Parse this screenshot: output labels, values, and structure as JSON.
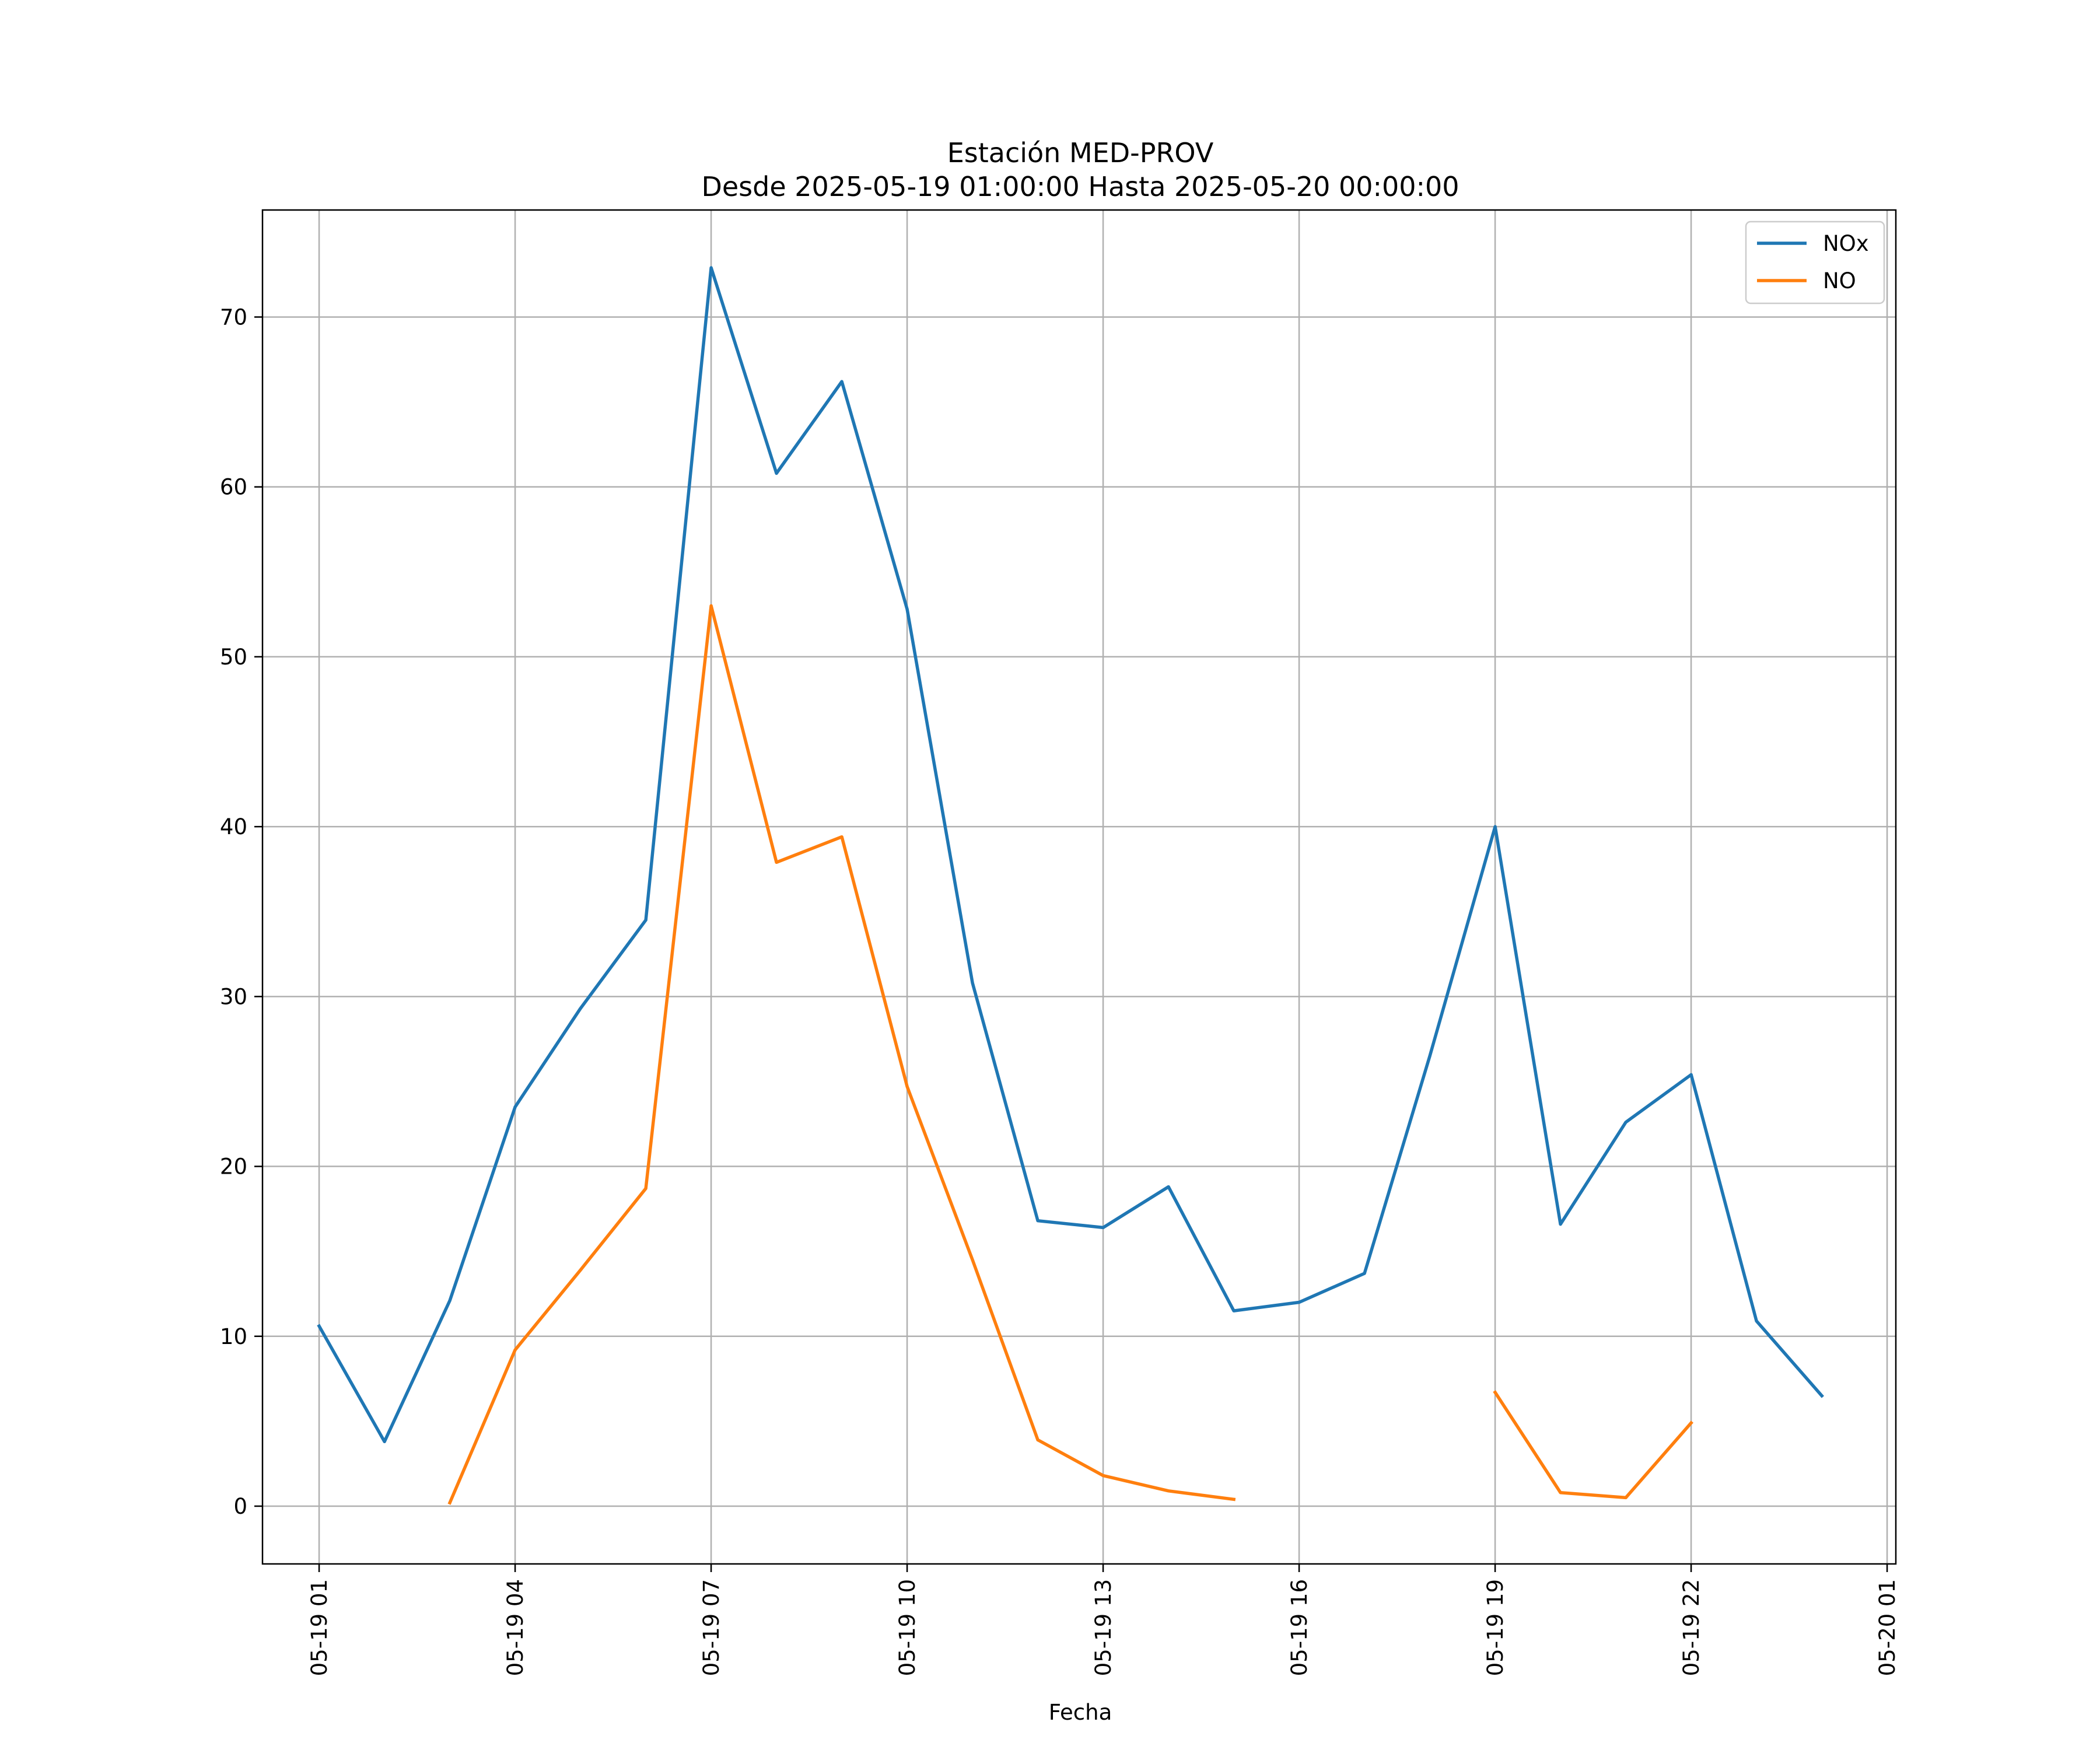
{
  "chart_data": {
    "type": "line",
    "title": "Estación MED-PROV",
    "subtitle": "Desde 2025-05-19 01:00:00 Hasta 2025-05-20 00:00:00",
    "xlabel": "Fecha",
    "ylabel": "",
    "x": [
      "2025-05-19 01:00",
      "2025-05-19 02:00",
      "2025-05-19 03:00",
      "2025-05-19 04:00",
      "2025-05-19 05:00",
      "2025-05-19 06:00",
      "2025-05-19 07:00",
      "2025-05-19 08:00",
      "2025-05-19 09:00",
      "2025-05-19 10:00",
      "2025-05-19 11:00",
      "2025-05-19 12:00",
      "2025-05-19 13:00",
      "2025-05-19 14:00",
      "2025-05-19 15:00",
      "2025-05-19 16:00",
      "2025-05-19 17:00",
      "2025-05-19 18:00",
      "2025-05-19 19:00",
      "2025-05-19 20:00",
      "2025-05-19 21:00",
      "2025-05-19 22:00",
      "2025-05-19 23:00",
      "2025-05-20 00:00"
    ],
    "series": [
      {
        "name": "NOx",
        "color": "#1f77b4",
        "values": [
          10.6,
          3.8,
          12.1,
          23.5,
          29.3,
          34.5,
          72.9,
          60.8,
          66.2,
          52.8,
          30.8,
          16.8,
          16.4,
          18.8,
          11.5,
          12.0,
          13.7,
          26.5,
          40.0,
          16.6,
          22.6,
          25.4,
          10.9,
          6.5
        ]
      },
      {
        "name": "NO",
        "color": "#ff7f0e",
        "values": [
          null,
          null,
          0.2,
          9.2,
          13.9,
          18.7,
          53.0,
          37.9,
          39.4,
          24.7,
          14.5,
          3.9,
          1.8,
          0.9,
          0.4,
          null,
          null,
          null,
          6.7,
          0.8,
          0.5,
          4.9,
          null,
          null
        ]
      }
    ],
    "xticks": [
      "05-19 01",
      "05-19 04",
      "05-19 07",
      "05-19 10",
      "05-19 13",
      "05-19 16",
      "05-19 19",
      "05-19 22",
      "05-20 01"
    ],
    "yticks": [
      0,
      10,
      20,
      30,
      40,
      50,
      60,
      70
    ],
    "xlim": [
      "2025-05-19 00:08",
      "2025-05-20 01:08"
    ],
    "ylim": [
      -3.4,
      76.3
    ],
    "grid": true,
    "legend": "top-right"
  }
}
